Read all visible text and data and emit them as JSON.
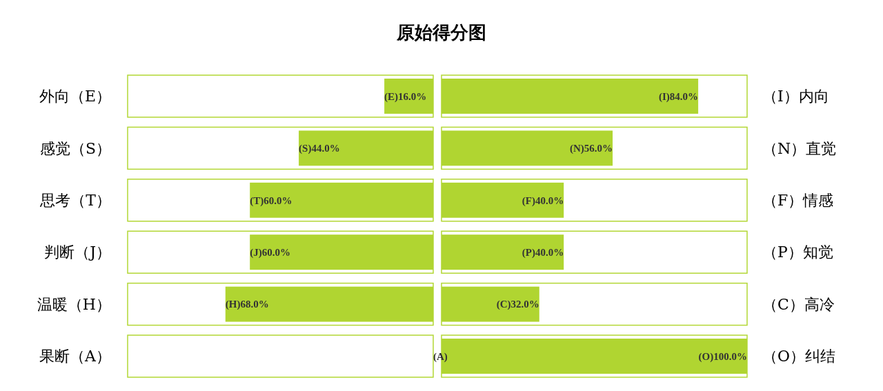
{
  "chart_data": [
    {
      "type": "bar",
      "orientation": "horizontal",
      "title": "原始得分图",
      "categories": [
        "外向（E）",
        "感觉（S）",
        "思考（T）",
        "判断（J）",
        "温暖（H）",
        "果断（A）"
      ],
      "xlim": [
        100,
        0
      ],
      "tick_labels": "y",
      "series": [
        {
          "color": "#b3d735",
          "values": [
            100,
            100,
            100,
            100,
            100,
            100
          ]
        },
        {
          "color": "#b0d531",
          "values": [
            16.0,
            44.0,
            60.0,
            60.0,
            68.0,
            0.0
          ],
          "value_labels": [
            "(E)16.0%",
            "(S)44.0%",
            "(T)60.0%",
            "(J)60.0%",
            "(H)68.0%",
            "(A)"
          ]
        }
      ]
    },
    {
      "type": "bar",
      "orientation": "horizontal",
      "categories": [
        "（I）内向",
        "（N）直觉",
        "（F）情感",
        "（P）知觉",
        "（C）高冷",
        "（O）纠结"
      ],
      "xlim": [
        0,
        100
      ],
      "tick_labels": "y",
      "series": [
        {
          "color": "#b3d735",
          "values": [
            100,
            100,
            100,
            100,
            100,
            100
          ]
        },
        {
          "color": "#b0d531",
          "values": [
            84.0,
            56.0,
            40.0,
            40.0,
            32.0,
            100.0
          ],
          "value_labels": [
            "(I)84.0%",
            "(N)56.0%",
            "(F)40.0%",
            "(P)40.0%",
            "(C)32.0%",
            "(O)100.0%"
          ]
        }
      ]
    }
  ]
}
